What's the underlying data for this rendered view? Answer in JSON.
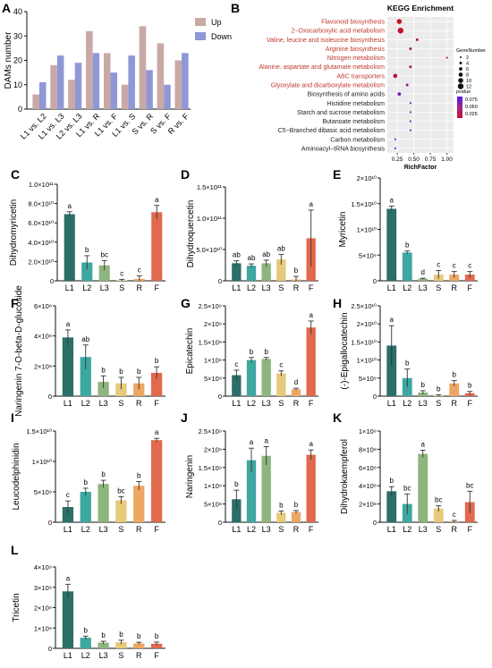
{
  "colors": {
    "up": "#c9a9a6",
    "down": "#8f97d6",
    "L1": "#2a6f68",
    "L2": "#3ea7a0",
    "L3": "#8fb57e",
    "S": "#e6c97a",
    "R": "#eea763",
    "F": "#e0694e",
    "kegg_red": "#c0392b",
    "kegg_black": "#222222",
    "error": "#333333"
  },
  "chart_data": [
    {
      "panel": "A",
      "type": "bar",
      "ylabel": "DAMs number",
      "ylim": [
        0,
        40
      ],
      "yticks": [
        0,
        10,
        20,
        30,
        40
      ],
      "categories": [
        "L1 vs. L2",
        "L1 vs. L3",
        "L2 vs. L3",
        "L1 vs. R",
        "L1 vs. F",
        "L1 vs. S",
        "S vs. R",
        "S vs. F",
        "R vs. F"
      ],
      "series": [
        {
          "name": "Up",
          "values": [
            6,
            18,
            12,
            32,
            23,
            10,
            34,
            27,
            20
          ]
        },
        {
          "name": "Down",
          "values": [
            11,
            22,
            19,
            23,
            15,
            22,
            16,
            10,
            23
          ]
        }
      ],
      "legend": "top-right"
    },
    {
      "panel": "B",
      "type": "scatter",
      "title": "KEGG Enrichment",
      "xlabel": "RichFactor",
      "xlim": [
        0.1,
        1.1
      ],
      "xticks": [
        "0.25",
        "0.50",
        "0.75",
        "1.00"
      ],
      "pathways": [
        "Flavonoid biosynthesis",
        "2−Oxocarboxylic acid metabolism",
        "Valine, leucine and isoleucine biosynthesis",
        "Arginine biosynthesis",
        "Nitrogen metabolism",
        "Alanine, aspartate and glutamate metabolism",
        "ABC transporters",
        "Glyoxylate and dicarboxylate metabolism",
        "Biosynthesis of amino acids",
        "Histidine metabolism",
        "Starch and sucrose metabolism",
        "Butanoate metabolism",
        "C5−Branched dibasic acid metabolism",
        "Carbon metabolism",
        "Aminoacyl−tRNA biosynthesis"
      ],
      "richfactor": [
        0.28,
        0.3,
        0.55,
        0.45,
        1.0,
        0.45,
        0.22,
        0.4,
        0.28,
        0.45,
        0.45,
        0.45,
        0.45,
        0.22,
        0.22
      ],
      "gene_number": [
        10,
        12,
        4,
        4,
        2,
        4,
        8,
        4,
        6,
        2,
        2,
        2,
        2,
        2,
        2
      ],
      "pvalue": [
        0.02,
        0.025,
        0.04,
        0.045,
        0.05,
        0.045,
        0.03,
        0.05,
        0.065,
        0.075,
        0.075,
        0.075,
        0.075,
        0.08,
        0.08
      ],
      "significant": [
        true,
        true,
        true,
        true,
        true,
        true,
        true,
        true,
        false,
        false,
        false,
        false,
        false,
        false,
        false
      ],
      "legend_size_title": "GeneNumber",
      "legend_size_values": [
        "2",
        "4",
        "6",
        "8",
        "10",
        "12"
      ],
      "legend_color_title": "pvalue",
      "legend_color_values": [
        "0.075",
        "0.050",
        "0.025"
      ]
    },
    {
      "panel": "C",
      "type": "bar",
      "ylabel": "Dihydromyricetin",
      "categories": [
        "L1",
        "L2",
        "L3",
        "S",
        "R",
        "F"
      ],
      "values": [
        69000000000.0,
        19000000000.0,
        16000000000.0,
        500000000.0,
        2000000000.0,
        71000000000.0
      ],
      "errors": [
        2500000000.0,
        7000000000.0,
        5000000000.0,
        1000000000.0,
        3000000000.0,
        7000000000.0
      ],
      "letters": [
        "a",
        "b",
        "bc",
        "c",
        "c",
        "a"
      ],
      "ylim": [
        0,
        100000000000.0
      ],
      "yticks": [
        "0",
        "2.0×10¹⁰",
        "4.0×10¹⁰",
        "6.0×10¹⁰",
        "8.0×10¹⁰",
        "1.0×10¹¹"
      ]
    },
    {
      "panel": "D",
      "type": "bar",
      "ylabel": "Dihydroquercetin",
      "categories": [
        "L1",
        "L2",
        "L3",
        "S",
        "R",
        "F"
      ],
      "values": [
        28000000000.0,
        24000000000.0,
        28000000000.0,
        34000000000.0,
        2000000000.0,
        68000000000.0
      ],
      "errors": [
        4000000000.0,
        3000000000.0,
        5000000000.0,
        8000000000.0,
        5000000000.0,
        45000000000.0
      ],
      "letters": [
        "ab",
        "ab",
        "ab",
        "ab",
        "b",
        "a"
      ],
      "ylim": [
        0,
        150000000000.0
      ],
      "yticks": [
        "0",
        "5.0×10¹⁰",
        "1.0×10¹¹",
        "1.5×10¹¹"
      ]
    },
    {
      "panel": "E",
      "type": "bar",
      "ylabel": "Myricetin",
      "categories": [
        "L1",
        "L2",
        "L3",
        "S",
        "R",
        "F"
      ],
      "values": [
        14000000000.0,
        5500000000.0,
        400000000.0,
        1200000000.0,
        1200000000.0,
        1200000000.0
      ],
      "errors": [
        500000000.0,
        300000000.0,
        100000000.0,
        800000000.0,
        600000000.0,
        600000000.0
      ],
      "letters": [
        "a",
        "b",
        "d",
        "c",
        "c",
        "c"
      ],
      "ylim": [
        0,
        20000000000.0
      ],
      "yticks": [
        "0",
        "5×10⁹",
        "1×10¹⁰",
        "1.5×10¹⁰",
        "2×10¹⁰"
      ]
    },
    {
      "panel": "F",
      "type": "bar",
      "ylabel": "Naringenin 7-O-beta-D-glucoside",
      "categories": [
        "L1",
        "L2",
        "L3",
        "S",
        "R",
        "F"
      ],
      "values": [
        390000000.0,
        260000000.0,
        95000000.0,
        85000000.0,
        85000000.0,
        155000000.0
      ],
      "errors": [
        50000000.0,
        80000000.0,
        40000000.0,
        40000000.0,
        40000000.0,
        40000000.0
      ],
      "letters": [
        "a",
        "ab",
        "b",
        "b",
        "b",
        "b"
      ],
      "ylim": [
        0,
        600000000.0
      ],
      "yticks": [
        "0",
        "2×10⁸",
        "4×10⁸",
        "6×10⁸"
      ]
    },
    {
      "panel": "G",
      "type": "bar",
      "ylabel": "Epicatechin",
      "categories": [
        "L1",
        "L2",
        "L3",
        "S",
        "R",
        "F"
      ],
      "values": [
        580000000.0,
        1000000000.0,
        1030000000.0,
        630000000.0,
        190000000.0,
        1900000000.0
      ],
      "errors": [
        140000000.0,
        70000000.0,
        40000000.0,
        70000000.0,
        30000000.0,
        180000000.0
      ],
      "letters": [
        "c",
        "b",
        "b",
        "c",
        "d",
        "a"
      ],
      "ylim": [
        0,
        2500000000.0
      ],
      "yticks": [
        "0",
        "5×10⁸",
        "1×10⁹",
        "1.5×10⁹",
        "2×10⁹",
        "2.5×10⁹"
      ]
    },
    {
      "panel": "H",
      "type": "bar",
      "ylabel": "(-)-Epigallocatechin",
      "categories": [
        "L1",
        "L2",
        "L3",
        "S",
        "R",
        "F"
      ],
      "values": [
        14000000000.0,
        5000000000.0,
        1000000000.0,
        200000000.0,
        3500000000.0,
        800000000.0
      ],
      "errors": [
        5500000000.0,
        2500000000.0,
        500000000.0,
        200000000.0,
        800000000.0,
        500000000.0
      ],
      "letters": [
        "a",
        "b",
        "b",
        "b",
        "b",
        "b"
      ],
      "ylim": [
        0,
        25000000000.0
      ],
      "yticks": [
        "0",
        "5×10⁹",
        "1×10¹⁰",
        "1.5×10¹⁰",
        "2×10¹⁰",
        "2.5×10¹⁰"
      ]
    },
    {
      "panel": "I",
      "type": "bar",
      "ylabel": "Leucodelphinidin",
      "categories": [
        "L1",
        "L2",
        "L3",
        "S",
        "R",
        "F"
      ],
      "values": [
        2500000000.0,
        5000000000.0,
        6300000000.0,
        3600000000.0,
        6000000000.0,
        13500000000.0
      ],
      "errors": [
        1000000000.0,
        600000000.0,
        600000000.0,
        600000000.0,
        700000000.0,
        300000000.0
      ],
      "letters": [
        "c",
        "b",
        "b",
        "bc",
        "b",
        "a"
      ],
      "ylim": [
        0,
        15000000000.0
      ],
      "yticks": [
        "0",
        "5×10⁹",
        "1×10¹⁰",
        "1.5×10¹⁰"
      ]
    },
    {
      "panel": "J",
      "type": "bar",
      "ylabel": "Naringenin",
      "categories": [
        "L1",
        "L2",
        "L3",
        "S",
        "R",
        "F"
      ],
      "values": [
        630000000.0,
        1700000000.0,
        1820000000.0,
        260000000.0,
        280000000.0,
        1850000000.0
      ],
      "errors": [
        250000000.0,
        330000000.0,
        250000000.0,
        50000000.0,
        40000000.0,
        130000000.0
      ],
      "letters": [
        "b",
        "a",
        "a",
        "b",
        "b",
        "a"
      ],
      "ylim": [
        0,
        2500000000.0
      ],
      "yticks": [
        "0",
        "5×10⁸",
        "1×10⁹",
        "1.5×10⁹",
        "2×10⁹",
        "2.5×10⁹"
      ]
    },
    {
      "panel": "K",
      "type": "bar",
      "ylabel": "Dihydrokaempferol",
      "categories": [
        "L1",
        "L2",
        "L3",
        "S",
        "R",
        "F"
      ],
      "values": [
        340000000.0,
        200000000.0,
        750000000.0,
        150000000.0,
        10000000.0,
        220000000.0
      ],
      "errors": [
        50000000.0,
        110000000.0,
        40000000.0,
        30000000.0,
        10000000.0,
        120000000.0
      ],
      "letters": [
        "b",
        "bc",
        "a",
        "bc",
        "c",
        "bc"
      ],
      "ylim": [
        0,
        1000000000.0
      ],
      "yticks": [
        "0",
        "2×10⁸",
        "4×10⁸",
        "6×10⁸",
        "8×10⁸",
        "1×10⁹"
      ]
    },
    {
      "panel": "L",
      "type": "bar",
      "ylabel": "Tricetin",
      "categories": [
        "L1",
        "L2",
        "L3",
        "S",
        "R",
        "F"
      ],
      "values": [
        2800000000.0,
        520000000.0,
        280000000.0,
        300000000.0,
        240000000.0,
        230000000.0
      ],
      "errors": [
        350000000.0,
        80000000.0,
        70000000.0,
        100000000.0,
        60000000.0,
        80000000.0
      ],
      "letters": [
        "a",
        "b",
        "b",
        "b",
        "b",
        "b"
      ],
      "ylim": [
        0,
        4000000000.0
      ],
      "yticks": [
        "0",
        "1×10⁹",
        "2×10⁹",
        "3×10⁹",
        "4×10⁹"
      ]
    }
  ]
}
